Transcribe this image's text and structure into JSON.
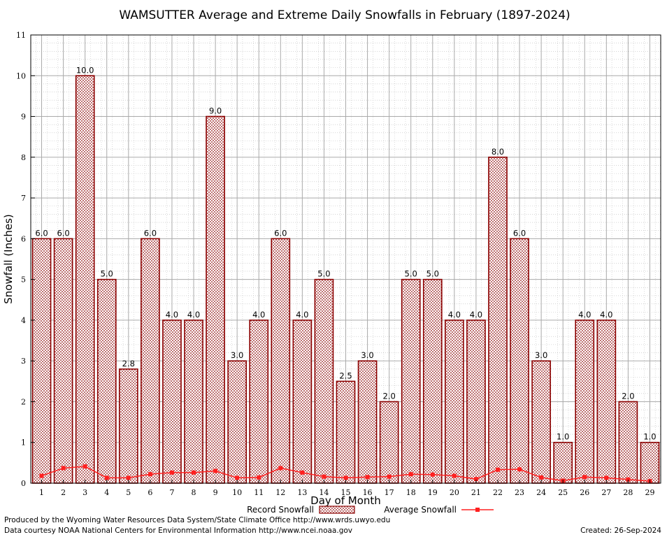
{
  "chart_data": {
    "type": "bar",
    "title": "WAMSUTTER Average and Extreme Daily Snowfalls in February (1897-2024)",
    "xlabel": "Day of Month",
    "ylabel": "Snowfall (Inches)",
    "ylim": [
      0,
      11
    ],
    "yticks": [
      0,
      1,
      2,
      3,
      4,
      5,
      6,
      7,
      8,
      9,
      10,
      11
    ],
    "grid": true,
    "categories": [
      "1",
      "2",
      "3",
      "4",
      "5",
      "6",
      "7",
      "8",
      "9",
      "10",
      "11",
      "12",
      "13",
      "14",
      "15",
      "16",
      "17",
      "18",
      "19",
      "20",
      "21",
      "22",
      "23",
      "24",
      "25",
      "26",
      "27",
      "28",
      "29"
    ],
    "series": [
      {
        "name": "Record Snowfall",
        "type": "bar",
        "color": "#8b0000",
        "values": [
          6.0,
          6.0,
          10.0,
          5.0,
          2.8,
          6.0,
          4.0,
          4.0,
          9.0,
          3.0,
          4.0,
          6.0,
          4.0,
          5.0,
          2.5,
          3.0,
          2.0,
          5.0,
          5.0,
          4.0,
          4.0,
          8.0,
          6.0,
          3.0,
          1.0,
          4.0,
          4.0,
          2.0,
          1.0
        ],
        "data_labels": [
          "6.0",
          "6.0",
          "10.0",
          "5.0",
          "2.8",
          "6.0",
          "4.0",
          "4.0",
          "9.0",
          "3.0",
          "4.0",
          "6.0",
          "4.0",
          "5.0",
          "2.5",
          "3.0",
          "2.0",
          "5.0",
          "5.0",
          "4.0",
          "4.0",
          "8.0",
          "6.0",
          "3.0",
          "1.0",
          "4.0",
          "4.0",
          "2.0",
          "1.0"
        ]
      },
      {
        "name": "Average Snowfall",
        "type": "line",
        "color": "#ff2020",
        "values": [
          0.18,
          0.37,
          0.41,
          0.13,
          0.13,
          0.22,
          0.26,
          0.26,
          0.3,
          0.13,
          0.14,
          0.37,
          0.26,
          0.16,
          0.13,
          0.15,
          0.16,
          0.22,
          0.21,
          0.18,
          0.1,
          0.33,
          0.34,
          0.14,
          0.06,
          0.15,
          0.13,
          0.09,
          0.05
        ]
      }
    ],
    "legend": {
      "placement": "bottom",
      "record_label": "Record Snowfall",
      "average_label": "Average Snowfall"
    }
  },
  "footer": {
    "line1": "Produced by the Wyoming Water Resources Data System/State Climate Office http://www.wrds.uwyo.edu",
    "line2": "Data courtesy NOAA National Centers for Environmental Information http://www.ncei.noaa.gov",
    "created": "Created:  26-Sep-2024"
  }
}
